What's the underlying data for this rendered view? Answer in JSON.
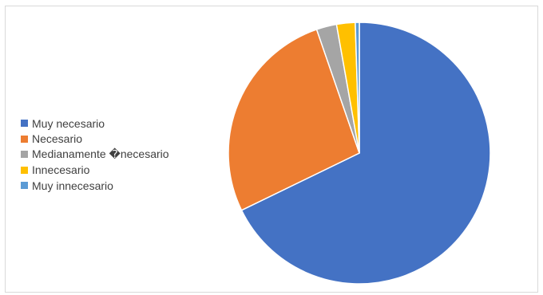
{
  "chart_data": {
    "type": "pie",
    "title": "",
    "categories": [
      "Muy necesario",
      "Necesario",
      "Medianamente �necesario",
      "Innecesario",
      "Muy innecesario"
    ],
    "values": [
      68,
      27,
      2.5,
      2.3,
      0.5
    ],
    "colors": [
      "#4472C4",
      "#ED7D31",
      "#A5A5A5",
      "#FFC000",
      "#5B9BD5"
    ],
    "legend_position": "left",
    "start_angle_deg": 0,
    "direction": "clockwise"
  }
}
